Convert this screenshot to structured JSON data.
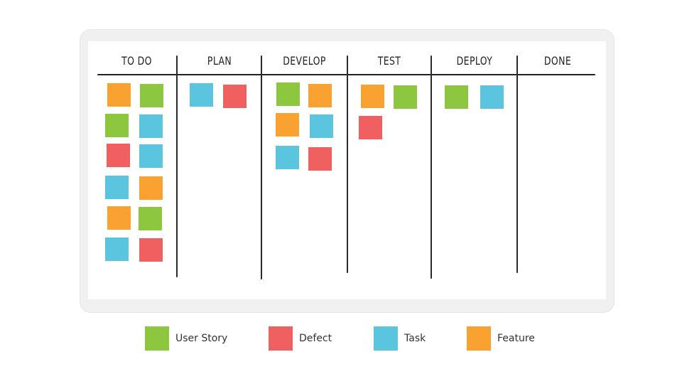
{
  "colors": {
    "user_story": "#8dc63f",
    "defect": "#f06060",
    "task": "#5bc5e0",
    "feature": "#f9a232"
  },
  "board": {
    "columns": [
      {
        "label": "TO DO",
        "notes": [
          "feature",
          "user_story",
          "user_story",
          "task",
          "defect",
          "task",
          "task",
          "feature",
          "feature",
          "user_story",
          "task",
          "defect"
        ]
      },
      {
        "label": "PLAN",
        "notes": [
          "task",
          "defect"
        ]
      },
      {
        "label": "DEVELOP",
        "notes": [
          "user_story",
          "feature",
          "feature",
          "task",
          "task",
          "defect"
        ]
      },
      {
        "label": "TEST",
        "notes": [
          "feature",
          "user_story",
          "defect"
        ]
      },
      {
        "label": "DEPLOY",
        "notes": [
          "user_story",
          "task"
        ]
      },
      {
        "label": "DONE",
        "notes": []
      }
    ]
  },
  "legend": [
    {
      "key": "user_story",
      "label": "User Story"
    },
    {
      "key": "defect",
      "label": "Defect"
    },
    {
      "key": "task",
      "label": "Task"
    },
    {
      "key": "feature",
      "label": "Feature"
    }
  ]
}
